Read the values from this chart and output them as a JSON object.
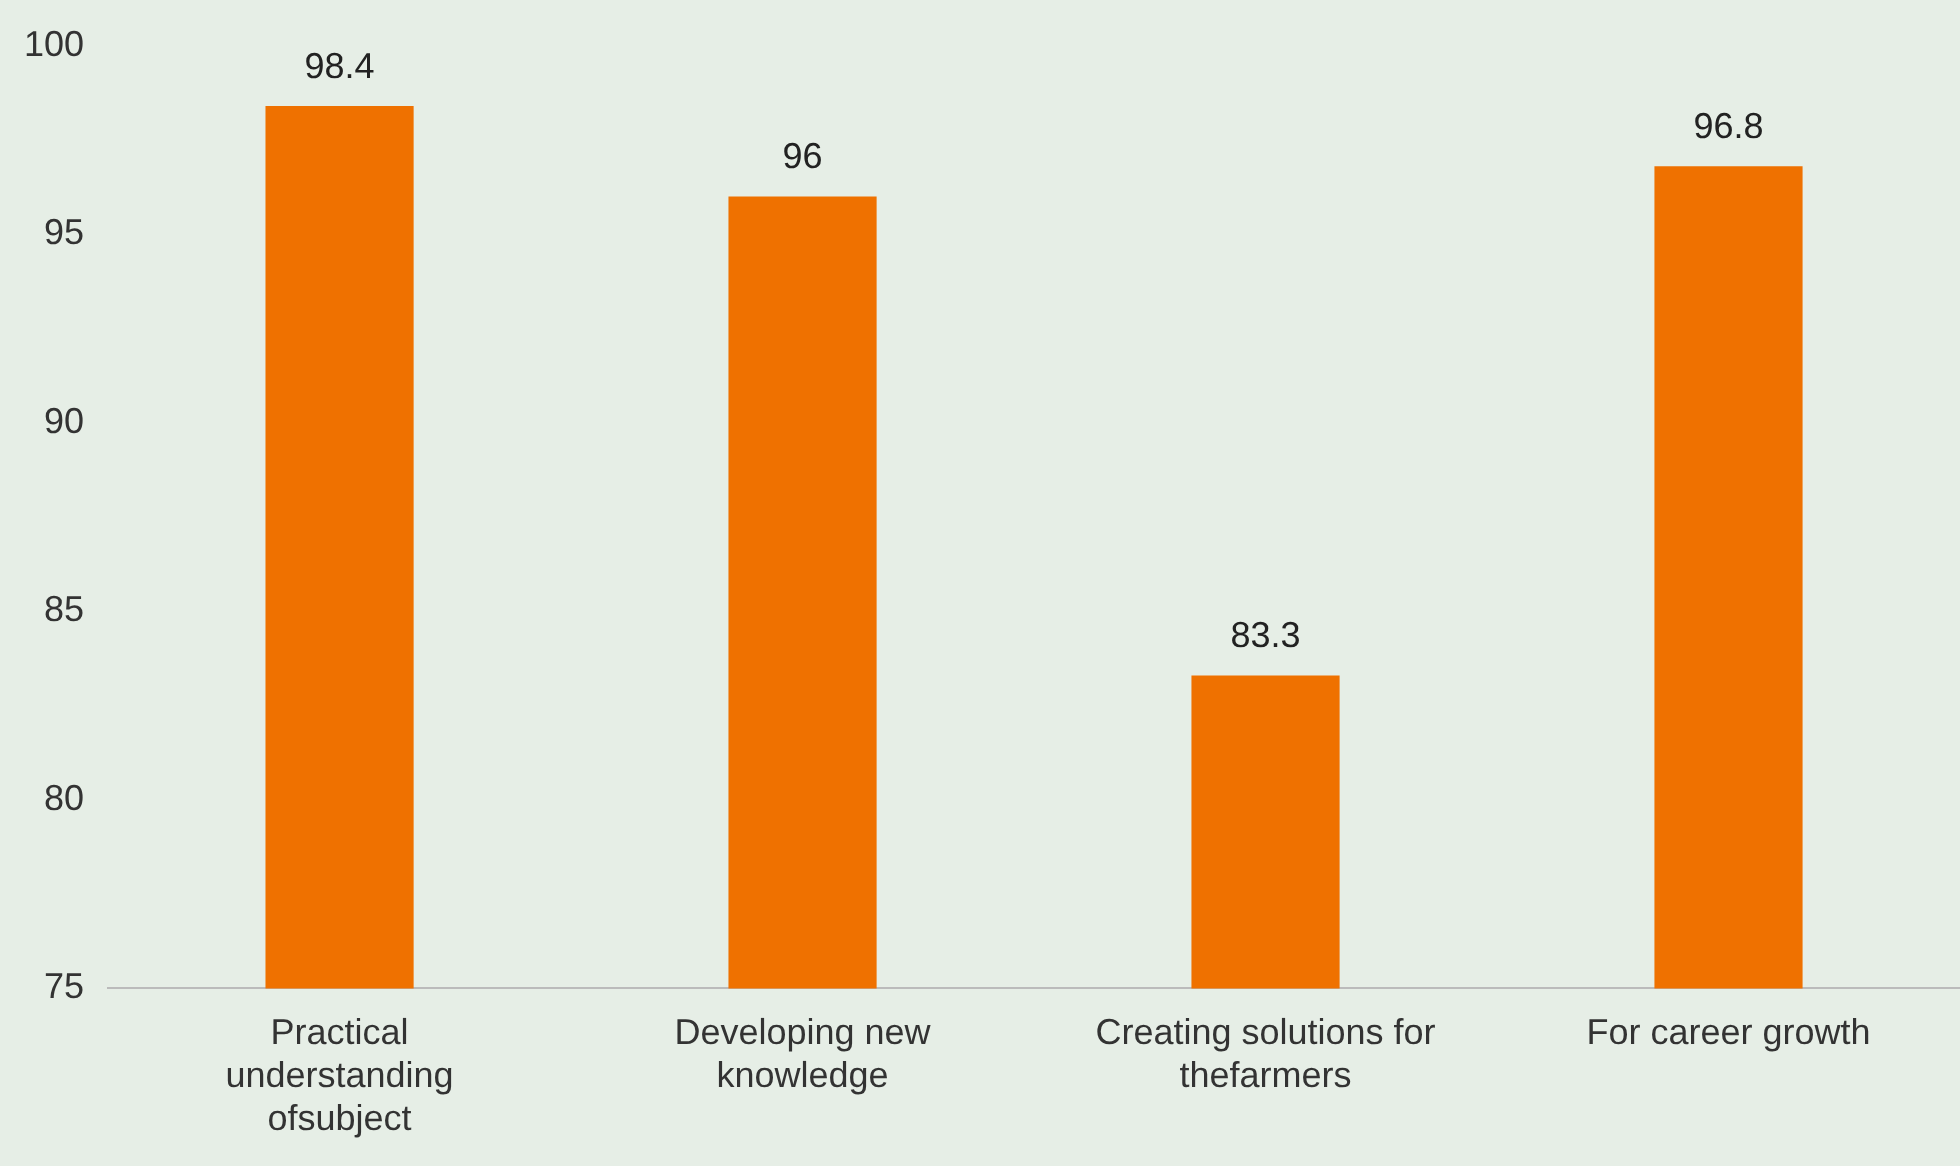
{
  "chart_data": {
    "type": "bar",
    "categories": [
      "Practical understanding ofsubject",
      "Developing new knowledge",
      "Creating solutions for thefarmers",
      "For career growth"
    ],
    "values": [
      98.4,
      96,
      83.3,
      96.8
    ],
    "color": "#ef7100",
    "ylim": [
      75,
      100
    ],
    "yticks": [
      75,
      80,
      85,
      90,
      95,
      100
    ],
    "grid": false,
    "legend": false,
    "data_labels": true
  }
}
